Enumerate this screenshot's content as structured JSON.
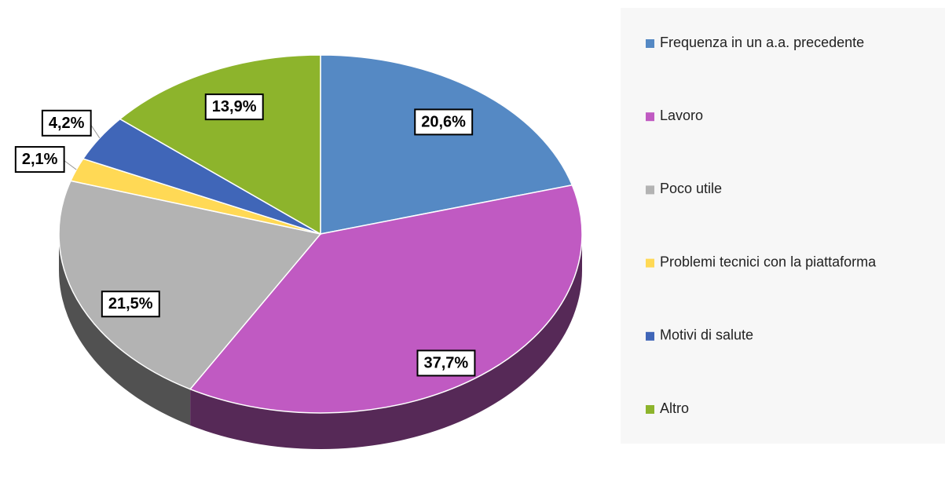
{
  "chart_data": {
    "type": "pie",
    "categories": [
      "Frequenza in un a.a. precedente",
      "Lavoro",
      "Poco utile",
      "Problemi tecnici con la piattaforma",
      "Motivi di salute",
      "Altro"
    ],
    "values": [
      20.6,
      37.7,
      21.5,
      2.1,
      4.2,
      13.9
    ],
    "value_labels": [
      "20,6%",
      "37,7%",
      "21,5%",
      "2,1%",
      "4,2%",
      "13,9%"
    ],
    "colors": [
      "#5589c4",
      "#c05ac2",
      "#b3b3b3",
      "#ffd955",
      "#4066b8",
      "#8db42c"
    ],
    "legend": "right"
  }
}
